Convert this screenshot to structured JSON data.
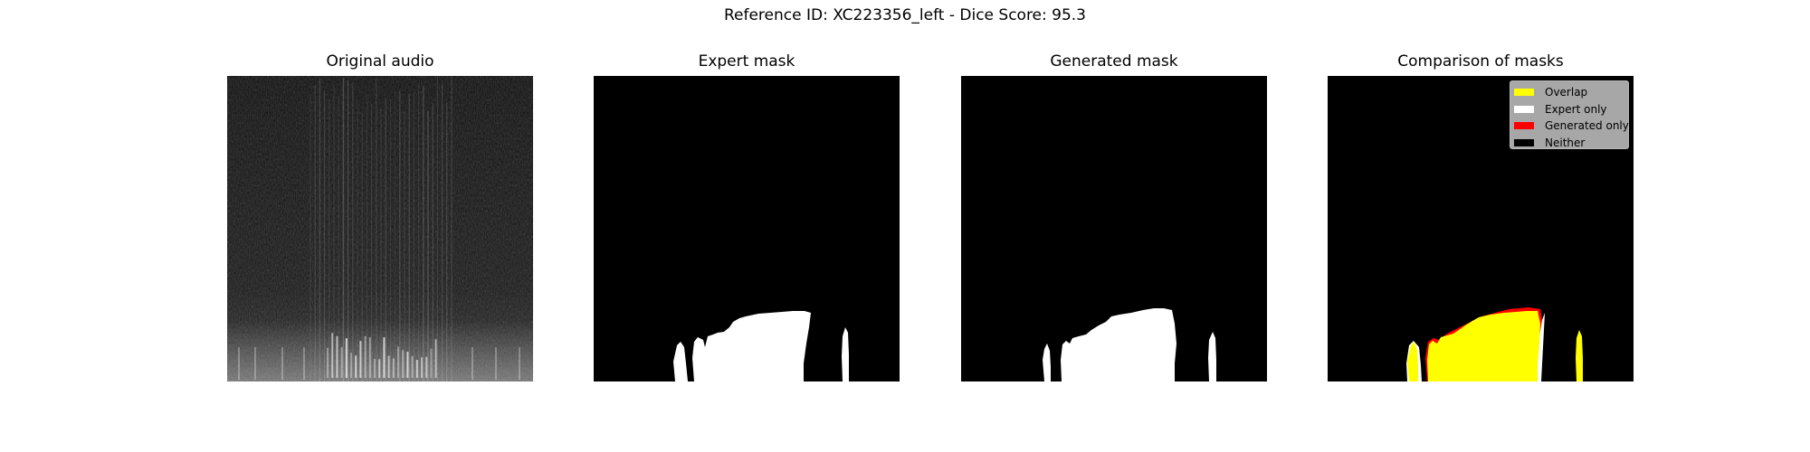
{
  "figure": {
    "title": "Reference ID: XC223356_left - Dice Score: 95.3"
  },
  "panels": [
    {
      "title": "Original audio"
    },
    {
      "title": "Expert mask"
    },
    {
      "title": "Generated mask"
    },
    {
      "title": "Comparison of masks"
    }
  ],
  "legend": {
    "items": [
      {
        "label": "Overlap",
        "color": "#ffff00"
      },
      {
        "label": "Expert only",
        "color": "#ffffff"
      },
      {
        "label": "Generated only",
        "color": "#ff0000"
      },
      {
        "label": "Neither",
        "color": "#000000"
      }
    ]
  }
}
